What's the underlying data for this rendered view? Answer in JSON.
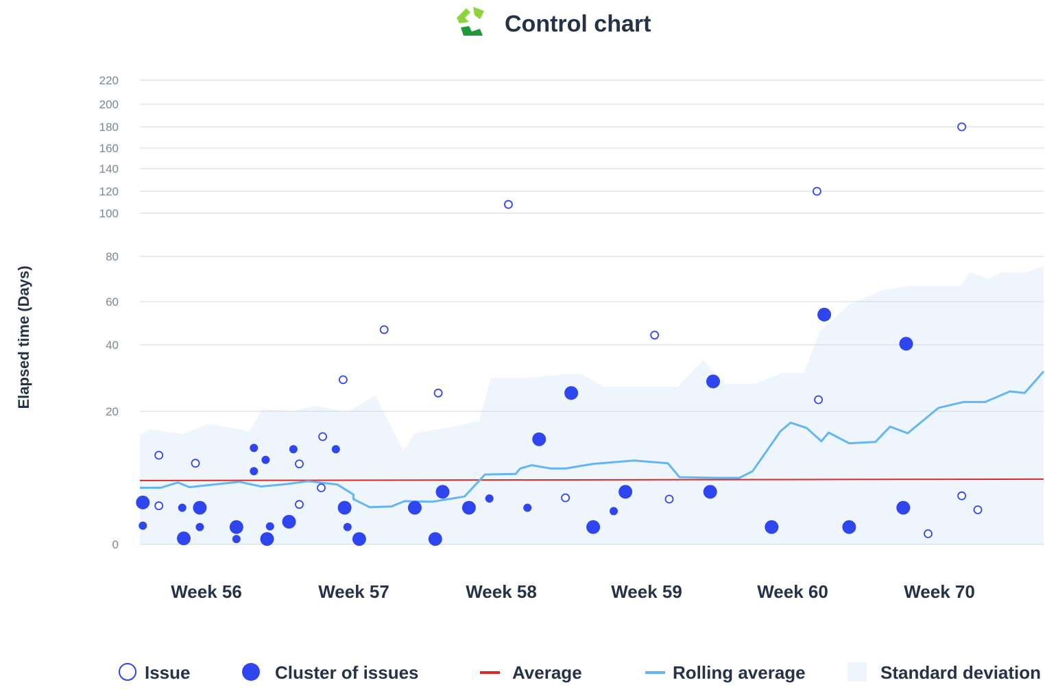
{
  "title": "Control chart",
  "colors": {
    "issue": "#2f45f0",
    "cluster": "#2f45f0",
    "average": "#d92a2a",
    "rolling": "#64b5f2",
    "stddev": "#eef5fd",
    "grid": "#d9dde3",
    "logo_light": "#8cd43e",
    "logo_dark": "#1f9a3a"
  },
  "chart_data": {
    "type": "scatter",
    "title": "Control chart",
    "ylabel": "Elapsed time (Days)",
    "xlabel": "",
    "y_scale": "non-linear (compressed above 20)",
    "ylim": [
      0,
      220
    ],
    "y_ticks": [
      0,
      20,
      40,
      60,
      80,
      100,
      120,
      140,
      160,
      180,
      200,
      220
    ],
    "categories": [
      "Week 56",
      "Week 57",
      "Week 58",
      "Week 59",
      "Week 60",
      "Week 70"
    ],
    "grid": "horizontal",
    "legend_position": "bottom",
    "x_range": [
      55.55,
      61.73
    ],
    "series": [
      {
        "name": "Issue",
        "marker": "hollow-circle",
        "points": [
          {
            "x": 55.68,
            "y": 5.8
          },
          {
            "x": 55.68,
            "y": 13.4
          },
          {
            "x": 55.93,
            "y": 12.2
          },
          {
            "x": 56.64,
            "y": 12.1
          },
          {
            "x": 56.64,
            "y": 6.0
          },
          {
            "x": 56.79,
            "y": 8.5
          },
          {
            "x": 56.8,
            "y": 16.2
          },
          {
            "x": 56.94,
            "y": 29.5
          },
          {
            "x": 57.22,
            "y": 47.0
          },
          {
            "x": 57.59,
            "y": 25.5
          },
          {
            "x": 58.07,
            "y": 108
          },
          {
            "x": 58.46,
            "y": 7.0
          },
          {
            "x": 59.07,
            "y": 44.5
          },
          {
            "x": 59.17,
            "y": 6.8
          },
          {
            "x": 60.18,
            "y": 120
          },
          {
            "x": 60.19,
            "y": 23.5
          },
          {
            "x": 60.94,
            "y": 1.6
          },
          {
            "x": 61.17,
            "y": 7.3
          },
          {
            "x": 61.17,
            "y": 180
          },
          {
            "x": 61.28,
            "y": 5.2
          }
        ]
      },
      {
        "name": "Cluster of issues",
        "marker": "filled-circle",
        "points": [
          {
            "x": 55.57,
            "y": 6.3,
            "size": "large"
          },
          {
            "x": 55.57,
            "y": 2.8,
            "size": "small"
          },
          {
            "x": 55.85,
            "y": 0.9,
            "size": "large"
          },
          {
            "x": 55.84,
            "y": 5.5,
            "size": "small"
          },
          {
            "x": 55.96,
            "y": 5.5,
            "size": "large"
          },
          {
            "x": 55.96,
            "y": 2.6,
            "size": "small"
          },
          {
            "x": 56.21,
            "y": 2.6,
            "size": "large"
          },
          {
            "x": 56.21,
            "y": 0.8,
            "size": "small"
          },
          {
            "x": 56.33,
            "y": 14.5,
            "size": "small"
          },
          {
            "x": 56.33,
            "y": 11.0,
            "size": "small"
          },
          {
            "x": 56.41,
            "y": 12.7,
            "size": "small"
          },
          {
            "x": 56.42,
            "y": 0.8,
            "size": "large"
          },
          {
            "x": 56.44,
            "y": 2.7,
            "size": "small"
          },
          {
            "x": 56.57,
            "y": 3.4,
            "size": "large"
          },
          {
            "x": 56.6,
            "y": 14.3,
            "size": "small"
          },
          {
            "x": 56.89,
            "y": 14.3,
            "size": "small"
          },
          {
            "x": 56.95,
            "y": 5.5,
            "size": "large"
          },
          {
            "x": 56.97,
            "y": 2.6,
            "size": "small"
          },
          {
            "x": 57.05,
            "y": 0.8,
            "size": "large"
          },
          {
            "x": 57.43,
            "y": 5.5,
            "size": "large"
          },
          {
            "x": 57.57,
            "y": 0.8,
            "size": "large"
          },
          {
            "x": 57.62,
            "y": 7.9,
            "size": "large"
          },
          {
            "x": 57.8,
            "y": 5.5,
            "size": "large"
          },
          {
            "x": 57.94,
            "y": 6.9,
            "size": "small"
          },
          {
            "x": 58.2,
            "y": 5.5,
            "size": "small"
          },
          {
            "x": 58.28,
            "y": 15.8,
            "size": "large"
          },
          {
            "x": 58.5,
            "y": 25.5,
            "size": "large"
          },
          {
            "x": 58.65,
            "y": 2.6,
            "size": "large"
          },
          {
            "x": 58.79,
            "y": 5.0,
            "size": "small"
          },
          {
            "x": 58.87,
            "y": 7.9,
            "size": "large"
          },
          {
            "x": 59.45,
            "y": 7.9,
            "size": "large"
          },
          {
            "x": 59.47,
            "y": 29.0,
            "size": "large"
          },
          {
            "x": 59.87,
            "y": 2.6,
            "size": "large"
          },
          {
            "x": 60.23,
            "y": 54.0,
            "size": "large"
          },
          {
            "x": 60.4,
            "y": 2.6,
            "size": "large"
          },
          {
            "x": 60.77,
            "y": 5.5,
            "size": "large"
          },
          {
            "x": 60.79,
            "y": 40.5,
            "size": "large"
          }
        ]
      },
      {
        "name": "Average",
        "line": "constant",
        "y": 9.7
      },
      {
        "name": "Rolling average",
        "points": [
          {
            "x": 55.55,
            "y": 8.5
          },
          {
            "x": 55.69,
            "y": 8.5
          },
          {
            "x": 55.81,
            "y": 9.3
          },
          {
            "x": 55.89,
            "y": 8.6
          },
          {
            "x": 56.01,
            "y": 8.9
          },
          {
            "x": 56.23,
            "y": 9.4
          },
          {
            "x": 56.38,
            "y": 8.7
          },
          {
            "x": 56.57,
            "y": 9.1
          },
          {
            "x": 56.7,
            "y": 9.5
          },
          {
            "x": 56.9,
            "y": 9.0
          },
          {
            "x": 57.01,
            "y": 7.5
          },
          {
            "x": 57.01,
            "y": 6.8
          },
          {
            "x": 57.12,
            "y": 5.6
          },
          {
            "x": 57.27,
            "y": 5.7
          },
          {
            "x": 57.36,
            "y": 6.5
          },
          {
            "x": 57.55,
            "y": 6.4
          },
          {
            "x": 57.77,
            "y": 7.2
          },
          {
            "x": 57.91,
            "y": 10.5
          },
          {
            "x": 58.12,
            "y": 10.6
          },
          {
            "x": 58.15,
            "y": 11.4
          },
          {
            "x": 58.23,
            "y": 11.9
          },
          {
            "x": 58.36,
            "y": 11.4
          },
          {
            "x": 58.46,
            "y": 11.4
          },
          {
            "x": 58.65,
            "y": 12.1
          },
          {
            "x": 58.93,
            "y": 12.6
          },
          {
            "x": 59.16,
            "y": 12.2
          },
          {
            "x": 59.24,
            "y": 10.1
          },
          {
            "x": 59.48,
            "y": 10.0
          },
          {
            "x": 59.65,
            "y": 10.0
          },
          {
            "x": 59.74,
            "y": 11.0
          },
          {
            "x": 59.93,
            "y": 17.0
          },
          {
            "x": 60.0,
            "y": 18.3
          },
          {
            "x": 60.11,
            "y": 17.5
          },
          {
            "x": 60.21,
            "y": 15.5
          },
          {
            "x": 60.26,
            "y": 16.8
          },
          {
            "x": 60.4,
            "y": 15.2
          },
          {
            "x": 60.58,
            "y": 15.4
          },
          {
            "x": 60.68,
            "y": 17.7
          },
          {
            "x": 60.8,
            "y": 16.7
          },
          {
            "x": 61.01,
            "y": 21.0
          },
          {
            "x": 61.18,
            "y": 22.8
          },
          {
            "x": 61.33,
            "y": 22.8
          },
          {
            "x": 61.5,
            "y": 26.0
          },
          {
            "x": 61.6,
            "y": 25.5
          },
          {
            "x": 61.73,
            "y": 32.0
          }
        ]
      },
      {
        "name": "Standard deviation",
        "band": true,
        "upper": [
          {
            "x": 55.55,
            "y": 16.4
          },
          {
            "x": 55.62,
            "y": 17.3
          },
          {
            "x": 55.84,
            "y": 16.6
          },
          {
            "x": 56.02,
            "y": 18.1
          },
          {
            "x": 56.3,
            "y": 17.0
          },
          {
            "x": 56.39,
            "y": 20.7
          },
          {
            "x": 56.6,
            "y": 20.1
          },
          {
            "x": 56.75,
            "y": 21.7
          },
          {
            "x": 56.97,
            "y": 19.9
          },
          {
            "x": 57.16,
            "y": 24.8
          },
          {
            "x": 57.35,
            "y": 14.1
          },
          {
            "x": 57.43,
            "y": 16.7
          },
          {
            "x": 57.7,
            "y": 17.7
          },
          {
            "x": 57.87,
            "y": 18.6
          },
          {
            "x": 57.95,
            "y": 30.0
          },
          {
            "x": 58.16,
            "y": 30.0
          },
          {
            "x": 58.47,
            "y": 31.2
          },
          {
            "x": 58.57,
            "y": 31.2
          },
          {
            "x": 58.72,
            "y": 27.4
          },
          {
            "x": 59.23,
            "y": 27.4
          },
          {
            "x": 59.4,
            "y": 35.5
          },
          {
            "x": 59.55,
            "y": 28.3
          },
          {
            "x": 59.76,
            "y": 28.3
          },
          {
            "x": 59.94,
            "y": 31.5
          },
          {
            "x": 60.09,
            "y": 31.5
          },
          {
            "x": 60.2,
            "y": 46.5
          },
          {
            "x": 60.4,
            "y": 58.5
          },
          {
            "x": 60.62,
            "y": 65.0
          },
          {
            "x": 60.82,
            "y": 67.0
          },
          {
            "x": 61.16,
            "y": 67.0
          },
          {
            "x": 61.23,
            "y": 73.0
          },
          {
            "x": 61.35,
            "y": 70.0
          },
          {
            "x": 61.44,
            "y": 73.0
          },
          {
            "x": 61.62,
            "y": 73.0
          },
          {
            "x": 61.73,
            "y": 76.0
          }
        ]
      }
    ]
  },
  "legend": {
    "issue": "Issue",
    "cluster": "Cluster of issues",
    "average": "Average",
    "rolling": "Rolling average",
    "stddev": "Standard deviation"
  }
}
